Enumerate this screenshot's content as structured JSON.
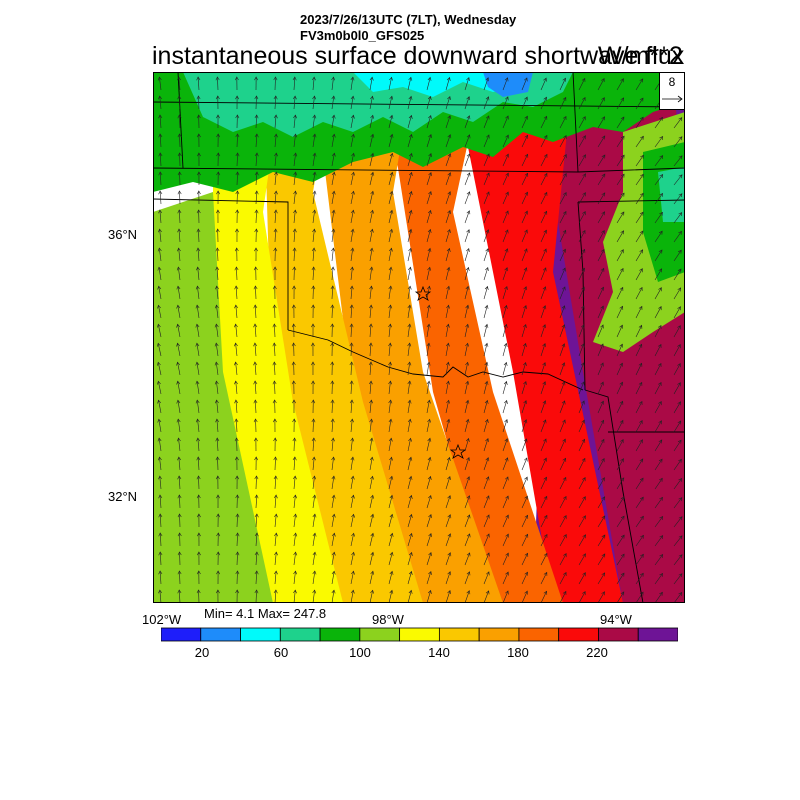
{
  "header": {
    "datetime": "2023/7/26/13UTC (7LT), Wednesday",
    "run": "FV3m0b0l0_GFS025",
    "variable": "instantaneous surface downward shortwave flux",
    "units": "W/m**2"
  },
  "vector_reference": {
    "value": "8"
  },
  "axes": {
    "lat_labels": [
      "36°N",
      "32°N"
    ],
    "lon_labels": [
      "102°W",
      "98°W",
      "94°W"
    ]
  },
  "stats": {
    "text": "Min= 4.1 Max= 247.8"
  },
  "colorbar": {
    "colors": [
      "#1e1efa",
      "#1e8cfa",
      "#00fafa",
      "#1ed28c",
      "#0ab40a",
      "#8cd21e",
      "#fafa00",
      "#fac800",
      "#faa000",
      "#fa6400",
      "#fa0a0a",
      "#aa0a46",
      "#6e1496"
    ],
    "labels": [
      "20",
      "60",
      "100",
      "140",
      "180",
      "220"
    ]
  },
  "map_features": [
    "wind-vectors",
    "state-borders",
    "marker-oklahoma-city",
    "marker-dallas-fort-worth"
  ]
}
